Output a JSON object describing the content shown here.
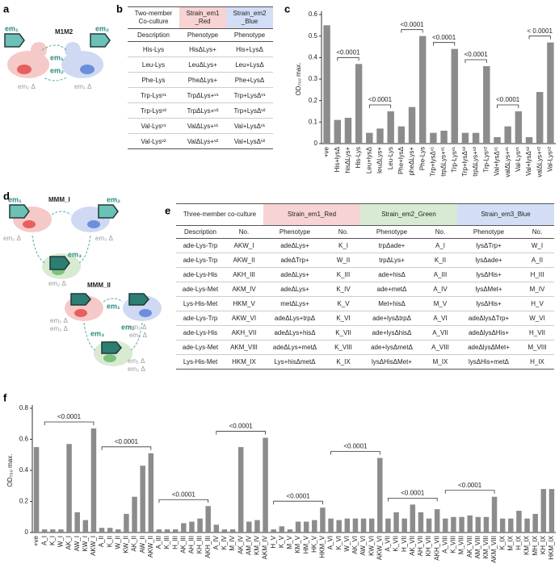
{
  "panel_labels": [
    "a",
    "b",
    "c",
    "d",
    "e",
    "f"
  ],
  "diagram_a": {
    "title": "M1M2",
    "labels": [
      "em₁",
      "em₂",
      "em₁",
      "em₂",
      "em₂ Δ",
      "em₁ Δ"
    ]
  },
  "diagram_d": {
    "titles": [
      "MMM_I",
      "MMM_II"
    ],
    "labels": [
      "em₁",
      "em₂",
      "em₃",
      "em₃ Δ",
      "em₃ Δ",
      "em₂ Δ",
      "em₁",
      "em₂",
      "em₃",
      "em₂ Δ",
      "em₃ Δ",
      "em₁ Δ",
      "em₃ Δ",
      "em₁ Δ",
      "em₂ Δ"
    ]
  },
  "table_b": {
    "header": [
      "Two-member Co-culture",
      "Strain_em1 _Red",
      "Strain_em2 _Blue"
    ],
    "subheader": [
      "Description",
      "Phenotype",
      "Phenotype"
    ],
    "rows": [
      [
        "His-Lys",
        "HisΔLys+",
        "His+LysΔ"
      ],
      [
        "Leu-Lys",
        "LeuΔLys+",
        "Leu+LysΔ"
      ],
      [
        "Phe-Lys",
        "PheΔLys+",
        "Phe+LysΔ"
      ],
      [
        "Trp-Lysᵛ¹",
        "TrpΔLys+ᵛ¹",
        "Trp+LysΔᵛ¹"
      ],
      [
        "Trp-Lysᵛ²",
        "TrpΔLys+ᵛ²",
        "Trp+LysΔᵛ²"
      ],
      [
        "Val-Lysᵛ¹",
        "ValΔLys+ᵛ¹",
        "Val+LysΔᵛ¹"
      ],
      [
        "Val-Lysᵛ²",
        "ValΔLys+ᵛ²",
        "Val+LysΔᵛ²"
      ]
    ]
  },
  "table_e": {
    "header": [
      "Three-member co-culture",
      "Strain_em1_Red",
      "Strain_em2_Green",
      "Strain_em3_Blue"
    ],
    "subheader": [
      "Description",
      "No.",
      "Phenotype",
      "No.",
      "Phenotype",
      "No.",
      "Phenotype",
      "No."
    ],
    "rows": [
      [
        "ade-Lys-Trp",
        "AKW_I",
        "adeΔLys+",
        "K_I",
        "trpΔade+",
        "A_I",
        "lysΔTrp+",
        "W_I"
      ],
      [
        "ade-Lys-Trp",
        "AKW_II",
        "adeΔTrp+",
        "W_II",
        "trpΔLys+",
        "K_II",
        "lysΔade+",
        "A_II"
      ],
      [
        "ade-Lys-His",
        "AKH_III",
        "adeΔLys+",
        "K_III",
        "ade+hisΔ",
        "A_III",
        "lysΔHis+",
        "H_III"
      ],
      [
        "ade-Lys-Met",
        "AKM_IV",
        "adeΔLys+",
        "K_IV",
        "ade+metΔ",
        "A_IV",
        "lysΔMet+",
        "M_IV"
      ],
      [
        "Lys-His-Met",
        "HKM_V",
        "metΔLys+",
        "K_V",
        "Met+hisΔ",
        "M_V",
        "lysΔHis+",
        "H_V"
      ],
      [
        "ade-Lys-Trp",
        "AKW_VI",
        "adeΔLys+trpΔ",
        "K_VI",
        "ade+lysΔtrpΔ",
        "A_VI",
        "adeΔlysΔTrp+",
        "W_VI"
      ],
      [
        "ade-Lys-His",
        "AKH_VII",
        "adeΔLys+hisΔ",
        "K_VII",
        "ade+lysΔhisΔ",
        "A_VII",
        "adeΔlysΔHis+",
        "H_VII"
      ],
      [
        "ade-Lys-Met",
        "AKM_VIII",
        "adeΔLys+metΔ",
        "K_VIII",
        "ade+lysΔmetΔ",
        "A_VIII",
        "adeΔlysΔMet+",
        "M_VIII"
      ],
      [
        "Lys-His-Met",
        "HKM_IX",
        "Lys+hisΔmetΔ",
        "K_IX",
        "lysΔHisΔMet+",
        "M_IX",
        "lysΔHis+metΔ",
        "H_IX"
      ]
    ]
  },
  "chart_data": [
    {
      "type": "bar",
      "y_label": "OD₇₀₀ max.",
      "color": "#8c8c8c",
      "categories": [
        "+ve",
        "His+lysΔ",
        "hisΔLys+",
        "His-Lys",
        "Leu+lysΔ",
        "leuΔLys+",
        "Leu-Lys",
        "Phe+lysΔ",
        "pheΔLys+",
        "Phe-Lys",
        "Trp+lysΔᵛ¹",
        "trpΔLys+ᵛ¹",
        "Trp-Lysᵛ¹",
        "Trp+lysΔᵛ²",
        "trpΔLys+ᵛ²",
        "Trp-Lysᵛ²",
        "Val+lysΔᵛ¹",
        "valΔLys+ᵛ¹",
        "Val-Lysᵛ¹",
        "Val+lysΔᵛ²",
        "valΔLys+ᵛ²",
        "Val-Lysᵛ²"
      ],
      "values": [
        0.55,
        0.11,
        0.12,
        0.37,
        0.05,
        0.07,
        0.15,
        0.08,
        0.17,
        0.5,
        0.05,
        0.06,
        0.44,
        0.05,
        0.05,
        0.36,
        0.03,
        0.08,
        0.15,
        0.03,
        0.24,
        0.47
      ],
      "ylim": [
        0,
        0.6
      ],
      "yticks": [
        0,
        0.1,
        0.2,
        0.3,
        0.4,
        0.5,
        0.6
      ],
      "annotations": [
        "<0.0001",
        "<0.0001",
        "<0.0001",
        "<0.0001",
        "<0.0001",
        "<0.0001",
        "< 0.0001"
      ]
    },
    {
      "type": "bar",
      "y_label": "OD₇₀₀ max.",
      "color": "#8c8c8c",
      "categories": [
        "+ve",
        "A_I",
        "K_I",
        "W_I",
        "AK_I",
        "AW_I",
        "KW_I",
        "AKW_I",
        "A_II",
        "K_II",
        "W_II",
        "KW_II",
        "AK_II",
        "AW_II",
        "AKW_II",
        "A_III",
        "K_III",
        "H_III",
        "AK_III",
        "AH_III",
        "KH_III",
        "AKH_III",
        "A_IV",
        "K_IV",
        "M_IV",
        "AK_IV",
        "AM_IV",
        "KM_IV",
        "AKM_IV",
        "H_V",
        "K_V",
        "M_V",
        "KM_V",
        "HM_V",
        "HK_V",
        "HKM_V",
        "A_VI",
        "K_VI",
        "W_VI",
        "AK_VI",
        "AW_VI",
        "KW_VI",
        "AKW_VI",
        "A_VII",
        "K_VII",
        "H_VII",
        "AK_VII",
        "AH_VII",
        "KH_VII",
        "AKH_VII",
        "A_VIII",
        "K_VIII",
        "M_VIII",
        "AK_VIII",
        "AM_VIII",
        "KM_VIII",
        "AKM_VIII",
        "K_IX",
        "M_IX",
        "H_IX",
        "KM_IX",
        "MH_IX",
        "KH_IX",
        "HKM_IX"
      ],
      "values": [
        0.55,
        0.02,
        0.02,
        0.02,
        0.57,
        0.13,
        0.08,
        0.67,
        0.03,
        0.03,
        0.02,
        0.12,
        0.23,
        0.43,
        0.51,
        0.02,
        0.02,
        0.02,
        0.06,
        0.07,
        0.09,
        0.17,
        0.05,
        0.02,
        0.02,
        0.55,
        0.07,
        0.08,
        0.61,
        0.02,
        0.04,
        0.02,
        0.07,
        0.07,
        0.08,
        0.16,
        0.09,
        0.08,
        0.09,
        0.09,
        0.09,
        0.09,
        0.48,
        0.09,
        0.13,
        0.09,
        0.18,
        0.13,
        0.09,
        0.15,
        0.09,
        0.1,
        0.1,
        0.11,
        0.1,
        0.1,
        0.23,
        0.09,
        0.09,
        0.14,
        0.09,
        0.12,
        0.28,
        0.28
      ],
      "ylim": [
        0,
        0.8
      ],
      "yticks": [
        0,
        0.2,
        0.4,
        0.6,
        0.8
      ],
      "annotations": [
        "<0.0001",
        "<0.0001",
        "<0.0001",
        "<0.0001",
        "<0.0001",
        "<0.0001",
        "<0.0001",
        "<0.0001"
      ]
    }
  ]
}
